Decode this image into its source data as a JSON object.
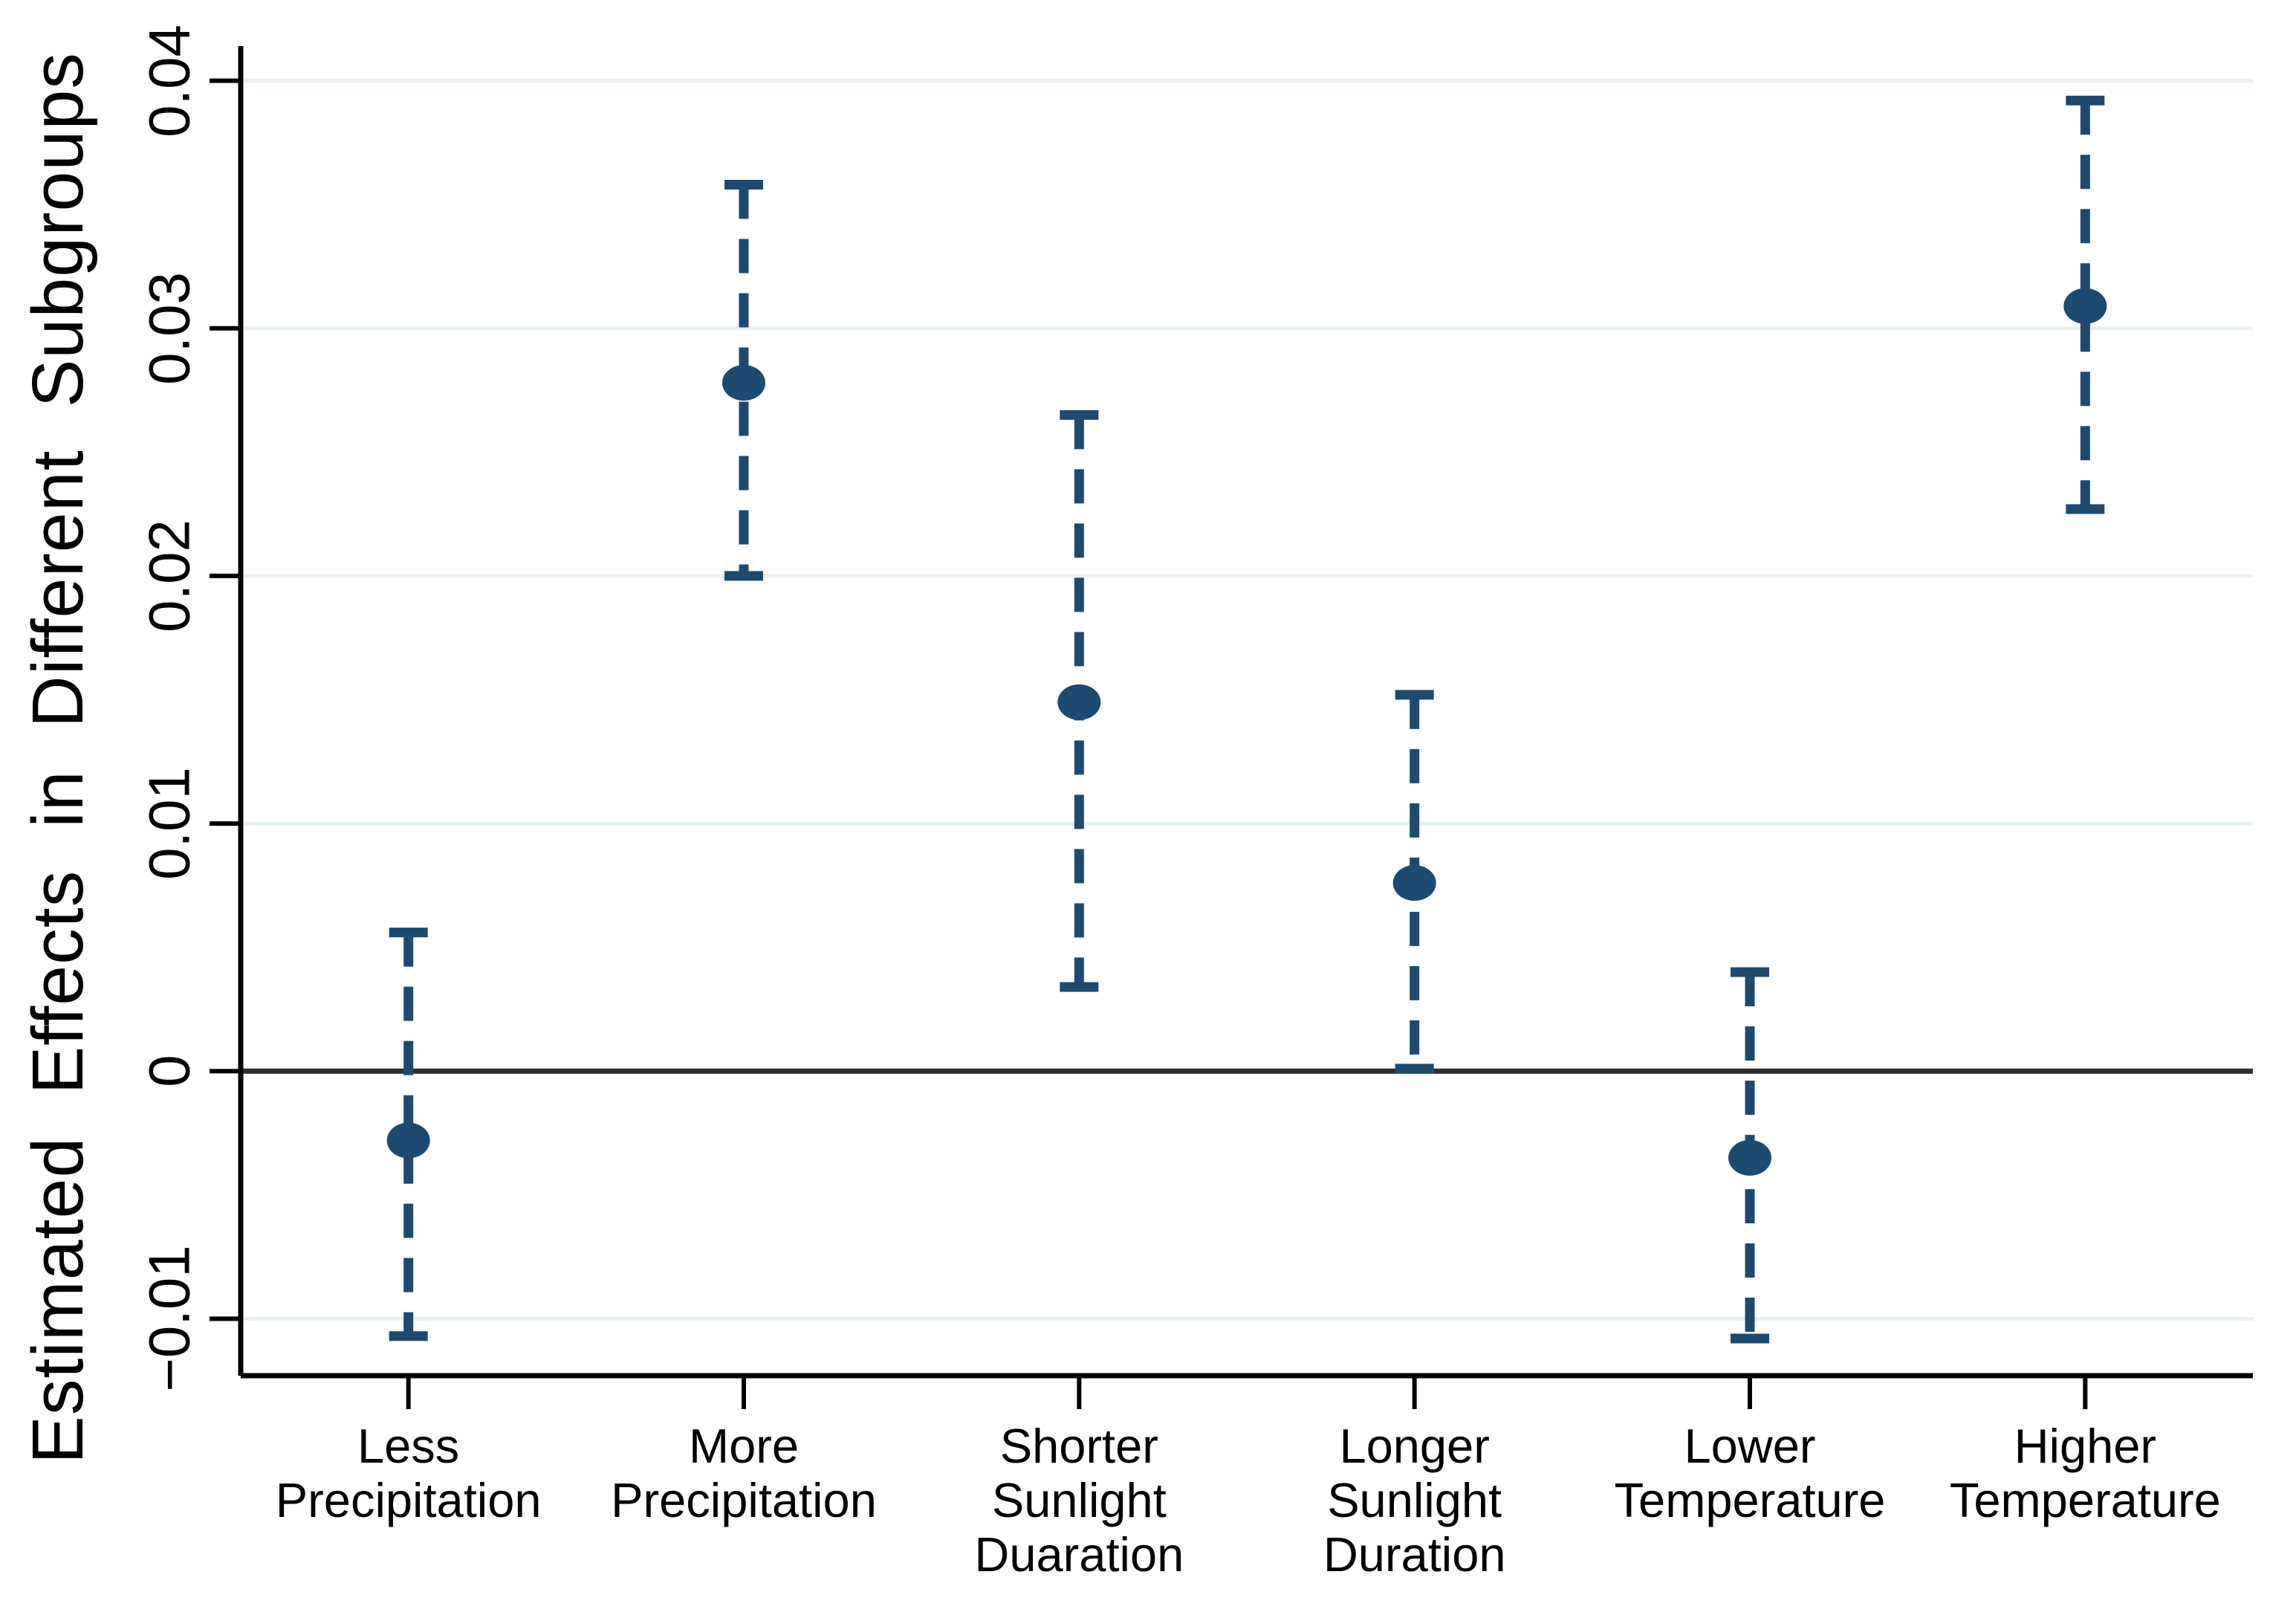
{
  "chart_data": {
    "type": "scatter",
    "subtype": "coefficient-plot-with-error-bars",
    "title": "",
    "xlabel": "",
    "ylabel": "Estimated Effects in Different Subgroups",
    "ylim": [
      -0.0123,
      0.0414
    ],
    "grid": "horizontal",
    "legend": "none",
    "zero_reference_line": 0,
    "y_ticks": [
      {
        "value": 0.04,
        "label": "0.04"
      },
      {
        "value": 0.03,
        "label": "0.03"
      },
      {
        "value": 0.02,
        "label": "0.02"
      },
      {
        "value": 0.01,
        "label": "0.01"
      },
      {
        "value": 0,
        "label": "0"
      },
      {
        "value": -0.01,
        "label": "−0.01"
      }
    ],
    "points": [
      {
        "category": "Less\nPrecipitation",
        "estimate": -0.0028,
        "ci_low": -0.0107,
        "ci_high": 0.0056
      },
      {
        "category": "More\nPrecipitation",
        "estimate": 0.0278,
        "ci_low": 0.02,
        "ci_high": 0.0358
      },
      {
        "category": "Shorter\nSunlight\nDuaration",
        "estimate": 0.0149,
        "ci_low": 0.0034,
        "ci_high": 0.0265
      },
      {
        "category": "Longer\nSunlight\nDuration",
        "estimate": 0.0076,
        "ci_low": 0.0001,
        "ci_high": 0.0152
      },
      {
        "category": "Lower\nTemperature",
        "estimate": -0.0035,
        "ci_low": -0.0108,
        "ci_high": 0.004
      },
      {
        "category": "Higher\nTemperature",
        "estimate": 0.0309,
        "ci_low": 0.0227,
        "ci_high": 0.0392
      }
    ],
    "colors": {
      "marker": "#1c4a70",
      "whisker": "#1c4a70",
      "gridline": "#e8f1f2",
      "zero_line": "#2e2e2e",
      "axis": "#000000",
      "text": "#000000",
      "background": "#ffffff"
    }
  }
}
